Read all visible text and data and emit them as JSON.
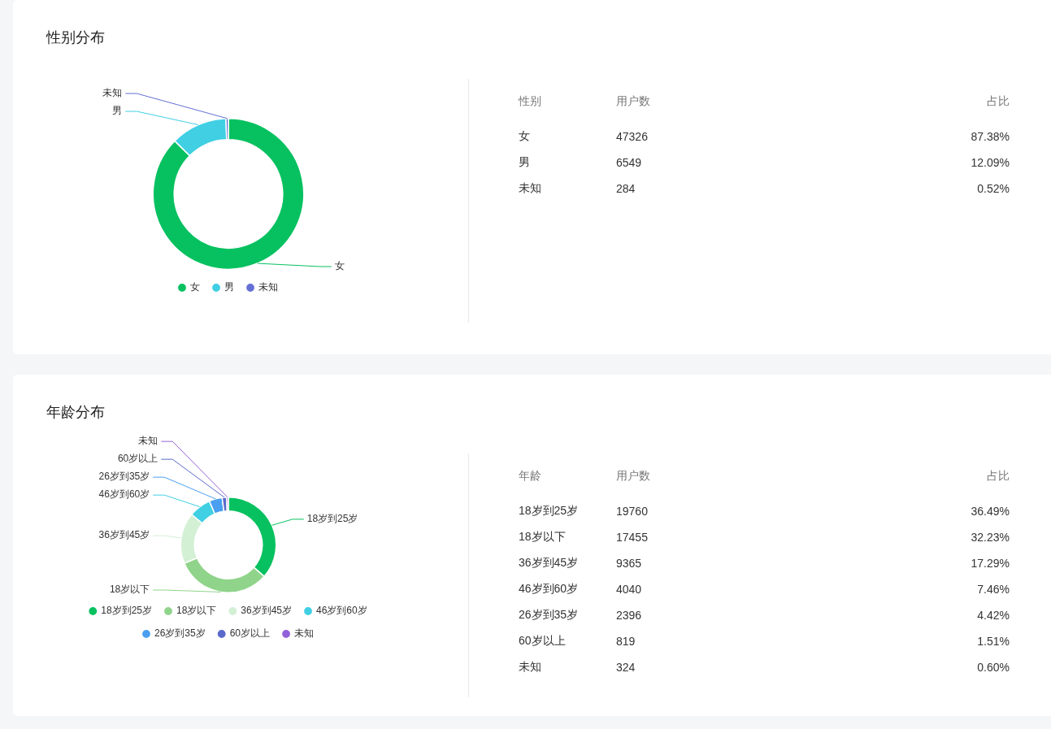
{
  "chart_data": [
    {
      "type": "donut",
      "title": "性别分布",
      "categories": [
        "女",
        "男",
        "未知"
      ],
      "values": [
        87.38,
        12.09,
        0.52
      ],
      "colors": [
        "#07c160",
        "#40cfe3",
        "#6470d4"
      ],
      "legend": "bottom"
    },
    {
      "type": "other",
      "annotations": [
        "性别",
        "用户数",
        "占比",
        "女",
        "47326",
        "87.38%",
        "男",
        "6549",
        "12.09%",
        "未知",
        "284",
        "0.52%"
      ]
    },
    {
      "type": "donut",
      "title": "年龄分布",
      "categories": [
        "18岁到25岁",
        "18岁以下",
        "36岁到45岁",
        "46岁到60岁",
        "26岁到35岁",
        "60岁以上",
        "未知"
      ],
      "values": [
        36.49,
        32.23,
        17.29,
        7.46,
        4.42,
        1.51,
        0.6
      ],
      "colors": [
        "#07c160",
        "#8fd48a",
        "#d3f0d5",
        "#40cfe3",
        "#4a9ff0",
        "#5a6acb",
        "#9262d8"
      ],
      "legend": "bottom"
    },
    {
      "type": "other",
      "annotations": [
        "年龄",
        "用户数",
        "占比",
        "18岁到25岁",
        "19760",
        "36.49%",
        "18岁以下",
        "17455",
        "32.23%",
        "36岁到45岁",
        "9365",
        "17.29%",
        "46岁到60岁",
        "4040",
        "7.46%",
        "26岁到35岁",
        "2396",
        "4.42%",
        "60岁以上",
        "819",
        "1.51%",
        "未知",
        "324",
        "0.60%"
      ]
    }
  ]
}
